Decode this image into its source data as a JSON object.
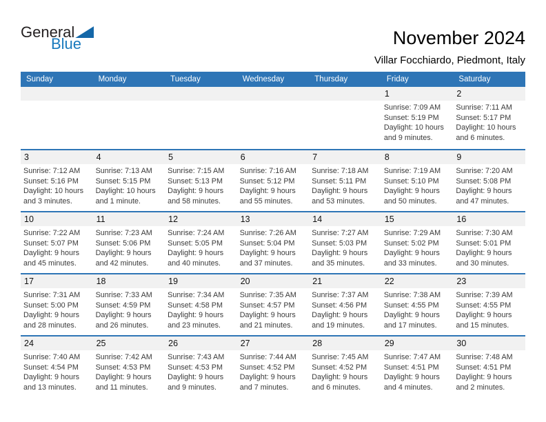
{
  "logo": {
    "general": "General",
    "blue": "Blue"
  },
  "title": "November 2024",
  "subtitle": "Villar Focchiardo, Piedmont, Italy",
  "colors": {
    "header_bg": "#2E75B6",
    "row_divider": "#2E75B6",
    "day_band_bg": "#F1F1F1",
    "logo_dark": "#231F20",
    "logo_blue": "#1879BD",
    "logo_triangle": "#1467A8"
  },
  "weekdays": [
    "Sunday",
    "Monday",
    "Tuesday",
    "Wednesday",
    "Thursday",
    "Friday",
    "Saturday"
  ],
  "weeks": [
    [
      null,
      null,
      null,
      null,
      null,
      {
        "day": "1",
        "sunrise": "Sunrise: 7:09 AM",
        "sunset": "Sunset: 5:19 PM",
        "daylight1": "Daylight: 10 hours",
        "daylight2": "and 9 minutes."
      },
      {
        "day": "2",
        "sunrise": "Sunrise: 7:11 AM",
        "sunset": "Sunset: 5:17 PM",
        "daylight1": "Daylight: 10 hours",
        "daylight2": "and 6 minutes."
      }
    ],
    [
      {
        "day": "3",
        "sunrise": "Sunrise: 7:12 AM",
        "sunset": "Sunset: 5:16 PM",
        "daylight1": "Daylight: 10 hours",
        "daylight2": "and 3 minutes."
      },
      {
        "day": "4",
        "sunrise": "Sunrise: 7:13 AM",
        "sunset": "Sunset: 5:15 PM",
        "daylight1": "Daylight: 10 hours",
        "daylight2": "and 1 minute."
      },
      {
        "day": "5",
        "sunrise": "Sunrise: 7:15 AM",
        "sunset": "Sunset: 5:13 PM",
        "daylight1": "Daylight: 9 hours",
        "daylight2": "and 58 minutes."
      },
      {
        "day": "6",
        "sunrise": "Sunrise: 7:16 AM",
        "sunset": "Sunset: 5:12 PM",
        "daylight1": "Daylight: 9 hours",
        "daylight2": "and 55 minutes."
      },
      {
        "day": "7",
        "sunrise": "Sunrise: 7:18 AM",
        "sunset": "Sunset: 5:11 PM",
        "daylight1": "Daylight: 9 hours",
        "daylight2": "and 53 minutes."
      },
      {
        "day": "8",
        "sunrise": "Sunrise: 7:19 AM",
        "sunset": "Sunset: 5:10 PM",
        "daylight1": "Daylight: 9 hours",
        "daylight2": "and 50 minutes."
      },
      {
        "day": "9",
        "sunrise": "Sunrise: 7:20 AM",
        "sunset": "Sunset: 5:08 PM",
        "daylight1": "Daylight: 9 hours",
        "daylight2": "and 47 minutes."
      }
    ],
    [
      {
        "day": "10",
        "sunrise": "Sunrise: 7:22 AM",
        "sunset": "Sunset: 5:07 PM",
        "daylight1": "Daylight: 9 hours",
        "daylight2": "and 45 minutes."
      },
      {
        "day": "11",
        "sunrise": "Sunrise: 7:23 AM",
        "sunset": "Sunset: 5:06 PM",
        "daylight1": "Daylight: 9 hours",
        "daylight2": "and 42 minutes."
      },
      {
        "day": "12",
        "sunrise": "Sunrise: 7:24 AM",
        "sunset": "Sunset: 5:05 PM",
        "daylight1": "Daylight: 9 hours",
        "daylight2": "and 40 minutes."
      },
      {
        "day": "13",
        "sunrise": "Sunrise: 7:26 AM",
        "sunset": "Sunset: 5:04 PM",
        "daylight1": "Daylight: 9 hours",
        "daylight2": "and 37 minutes."
      },
      {
        "day": "14",
        "sunrise": "Sunrise: 7:27 AM",
        "sunset": "Sunset: 5:03 PM",
        "daylight1": "Daylight: 9 hours",
        "daylight2": "and 35 minutes."
      },
      {
        "day": "15",
        "sunrise": "Sunrise: 7:29 AM",
        "sunset": "Sunset: 5:02 PM",
        "daylight1": "Daylight: 9 hours",
        "daylight2": "and 33 minutes."
      },
      {
        "day": "16",
        "sunrise": "Sunrise: 7:30 AM",
        "sunset": "Sunset: 5:01 PM",
        "daylight1": "Daylight: 9 hours",
        "daylight2": "and 30 minutes."
      }
    ],
    [
      {
        "day": "17",
        "sunrise": "Sunrise: 7:31 AM",
        "sunset": "Sunset: 5:00 PM",
        "daylight1": "Daylight: 9 hours",
        "daylight2": "and 28 minutes."
      },
      {
        "day": "18",
        "sunrise": "Sunrise: 7:33 AM",
        "sunset": "Sunset: 4:59 PM",
        "daylight1": "Daylight: 9 hours",
        "daylight2": "and 26 minutes."
      },
      {
        "day": "19",
        "sunrise": "Sunrise: 7:34 AM",
        "sunset": "Sunset: 4:58 PM",
        "daylight1": "Daylight: 9 hours",
        "daylight2": "and 23 minutes."
      },
      {
        "day": "20",
        "sunrise": "Sunrise: 7:35 AM",
        "sunset": "Sunset: 4:57 PM",
        "daylight1": "Daylight: 9 hours",
        "daylight2": "and 21 minutes."
      },
      {
        "day": "21",
        "sunrise": "Sunrise: 7:37 AM",
        "sunset": "Sunset: 4:56 PM",
        "daylight1": "Daylight: 9 hours",
        "daylight2": "and 19 minutes."
      },
      {
        "day": "22",
        "sunrise": "Sunrise: 7:38 AM",
        "sunset": "Sunset: 4:55 PM",
        "daylight1": "Daylight: 9 hours",
        "daylight2": "and 17 minutes."
      },
      {
        "day": "23",
        "sunrise": "Sunrise: 7:39 AM",
        "sunset": "Sunset: 4:55 PM",
        "daylight1": "Daylight: 9 hours",
        "daylight2": "and 15 minutes."
      }
    ],
    [
      {
        "day": "24",
        "sunrise": "Sunrise: 7:40 AM",
        "sunset": "Sunset: 4:54 PM",
        "daylight1": "Daylight: 9 hours",
        "daylight2": "and 13 minutes."
      },
      {
        "day": "25",
        "sunrise": "Sunrise: 7:42 AM",
        "sunset": "Sunset: 4:53 PM",
        "daylight1": "Daylight: 9 hours",
        "daylight2": "and 11 minutes."
      },
      {
        "day": "26",
        "sunrise": "Sunrise: 7:43 AM",
        "sunset": "Sunset: 4:53 PM",
        "daylight1": "Daylight: 9 hours",
        "daylight2": "and 9 minutes."
      },
      {
        "day": "27",
        "sunrise": "Sunrise: 7:44 AM",
        "sunset": "Sunset: 4:52 PM",
        "daylight1": "Daylight: 9 hours",
        "daylight2": "and 7 minutes."
      },
      {
        "day": "28",
        "sunrise": "Sunrise: 7:45 AM",
        "sunset": "Sunset: 4:52 PM",
        "daylight1": "Daylight: 9 hours",
        "daylight2": "and 6 minutes."
      },
      {
        "day": "29",
        "sunrise": "Sunrise: 7:47 AM",
        "sunset": "Sunset: 4:51 PM",
        "daylight1": "Daylight: 9 hours",
        "daylight2": "and 4 minutes."
      },
      {
        "day": "30",
        "sunrise": "Sunrise: 7:48 AM",
        "sunset": "Sunset: 4:51 PM",
        "daylight1": "Daylight: 9 hours",
        "daylight2": "and 2 minutes."
      }
    ]
  ]
}
